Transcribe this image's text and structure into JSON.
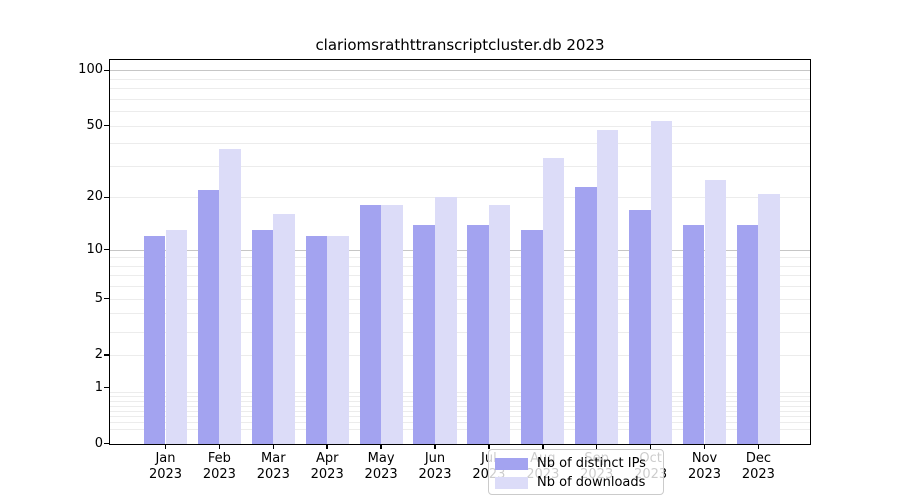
{
  "title": "clariomsrathttranscriptcluster.db 2023",
  "colors": {
    "distinct_ips_bar": "#a3a3f0",
    "downloads_bar": "#dcdcf8",
    "gridline_major": "#c6c6c6",
    "gridline_minor": "#ececec",
    "axis": "#000000"
  },
  "legend": {
    "items": [
      {
        "label": "Nb of distinct IPs",
        "series": "ips"
      },
      {
        "label": "Nb of downloads",
        "series": "downloads"
      }
    ]
  },
  "chart_data": {
    "type": "bar",
    "title": "clariomsrathttranscriptcluster.db 2023",
    "categories": [
      "Jan",
      "Feb",
      "Mar",
      "Apr",
      "May",
      "Jun",
      "Jul",
      "Aug",
      "Sep",
      "Oct",
      "Nov",
      "Dec"
    ],
    "year_label": "2023",
    "series": [
      {
        "name": "Nb of distinct IPs",
        "color": "#a3a3f0",
        "values": [
          12,
          22,
          13,
          12,
          18,
          14,
          14,
          13,
          23,
          17,
          14,
          14
        ]
      },
      {
        "name": "Nb of downloads",
        "color": "#dcdcf8",
        "values": [
          13,
          37,
          16,
          12,
          18,
          20,
          18,
          33,
          47,
          53,
          25,
          21
        ]
      }
    ],
    "yscale": "log1p",
    "ylim": [
      0,
      114
    ],
    "yticks": [
      100,
      50,
      20,
      10,
      5,
      2,
      1,
      0
    ],
    "major_gridlines": [
      10,
      100
    ],
    "minor_gridlines": [
      0.2,
      0.3,
      0.4,
      0.5,
      0.6,
      0.7,
      0.8,
      0.9,
      2,
      3,
      4,
      5,
      6,
      7,
      8,
      9,
      20,
      30,
      40,
      50,
      60,
      70,
      80,
      90
    ],
    "grid": true,
    "legend_position": "lower center",
    "xlabel": "",
    "ylabel": ""
  }
}
